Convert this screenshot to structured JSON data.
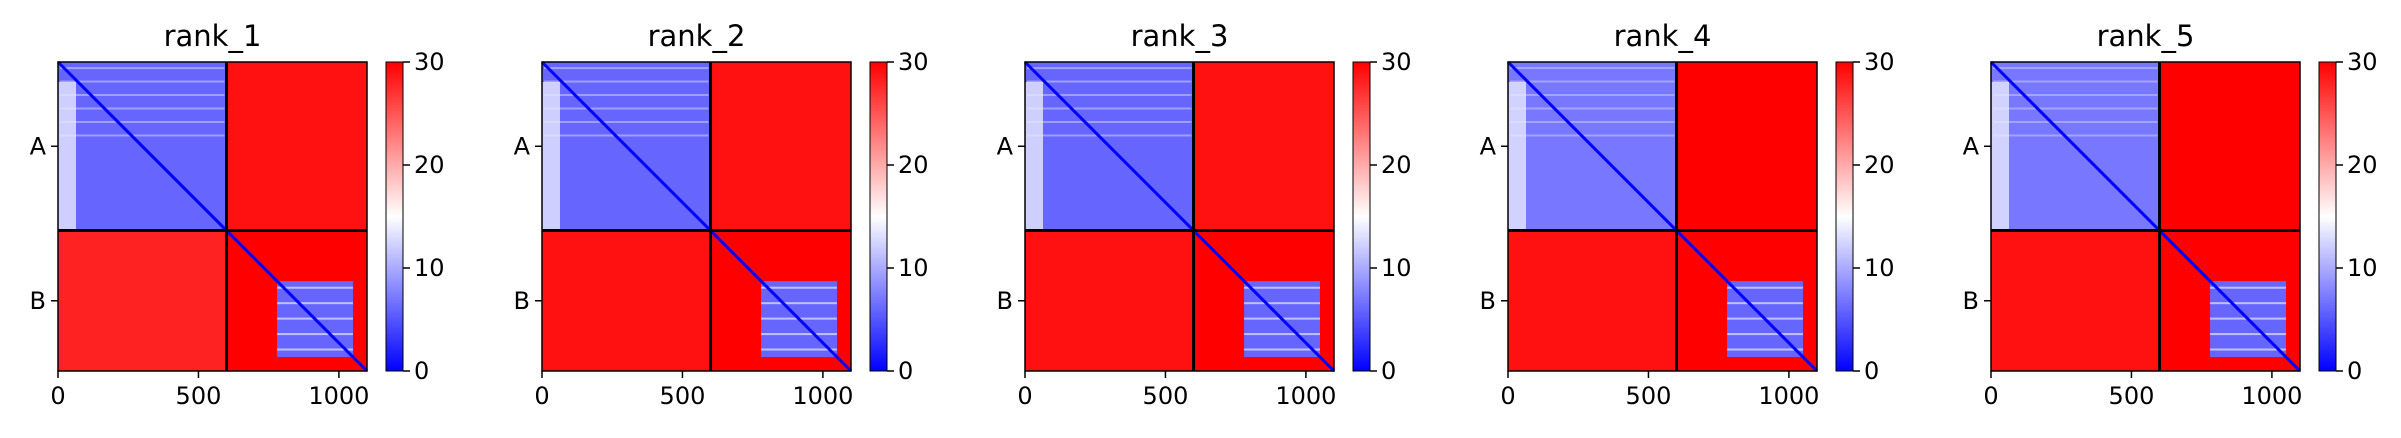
{
  "chart_data": [
    {
      "type": "heatmap",
      "title": "rank_1",
      "x_ticks": [
        "0",
        "500",
        "1000"
      ],
      "x_tick_values": [
        0,
        500,
        1000
      ],
      "xlim": [
        0,
        1100
      ],
      "y_labels": [
        "A",
        "B"
      ],
      "chain_boundary": 600,
      "colorbar": {
        "min": 0,
        "max": 30,
        "ticks": [
          "0",
          "10",
          "20",
          "30"
        ],
        "colors": [
          "#0000ff",
          "#ffffff",
          "#ff0000"
        ]
      },
      "blocks": [
        {
          "rows": "A",
          "cols": "A",
          "level": 6
        },
        {
          "rows": "A",
          "cols": "B",
          "level": 29
        },
        {
          "rows": "B",
          "cols": "A",
          "level": 28
        },
        {
          "rows": "B",
          "cols": "B",
          "level": 30,
          "inner_block": [
            780,
            1050
          ],
          "inner_level": 6
        }
      ]
    },
    {
      "type": "heatmap",
      "title": "rank_2",
      "x_ticks": [
        "0",
        "500",
        "1000"
      ],
      "x_tick_values": [
        0,
        500,
        1000
      ],
      "xlim": [
        0,
        1100
      ],
      "y_labels": [
        "A",
        "B"
      ],
      "chain_boundary": 600,
      "colorbar": {
        "min": 0,
        "max": 30,
        "ticks": [
          "0",
          "10",
          "20",
          "30"
        ],
        "colors": [
          "#0000ff",
          "#ffffff",
          "#ff0000"
        ]
      },
      "blocks": [
        {
          "rows": "A",
          "cols": "A",
          "level": 6
        },
        {
          "rows": "A",
          "cols": "B",
          "level": 29
        },
        {
          "rows": "B",
          "cols": "A",
          "level": 29
        },
        {
          "rows": "B",
          "cols": "B",
          "level": 30,
          "inner_block": [
            780,
            1050
          ],
          "inner_level": 6
        }
      ]
    },
    {
      "type": "heatmap",
      "title": "rank_3",
      "x_ticks": [
        "0",
        "500",
        "1000"
      ],
      "x_tick_values": [
        0,
        500,
        1000
      ],
      "xlim": [
        0,
        1100
      ],
      "y_labels": [
        "A",
        "B"
      ],
      "chain_boundary": 600,
      "colorbar": {
        "min": 0,
        "max": 30,
        "ticks": [
          "0",
          "10",
          "20",
          "30"
        ],
        "colors": [
          "#0000ff",
          "#ffffff",
          "#ff0000"
        ]
      },
      "blocks": [
        {
          "rows": "A",
          "cols": "A",
          "level": 6
        },
        {
          "rows": "A",
          "cols": "B",
          "level": 29
        },
        {
          "rows": "B",
          "cols": "A",
          "level": 29
        },
        {
          "rows": "B",
          "cols": "B",
          "level": 30,
          "inner_block": [
            780,
            1050
          ],
          "inner_level": 6
        }
      ]
    },
    {
      "type": "heatmap",
      "title": "rank_4",
      "x_ticks": [
        "0",
        "500",
        "1000"
      ],
      "x_tick_values": [
        0,
        500,
        1000
      ],
      "xlim": [
        0,
        1100
      ],
      "y_labels": [
        "A",
        "B"
      ],
      "chain_boundary": 600,
      "colorbar": {
        "min": 0,
        "max": 30,
        "ticks": [
          "0",
          "10",
          "20",
          "30"
        ],
        "colors": [
          "#0000ff",
          "#ffffff",
          "#ff0000"
        ]
      },
      "blocks": [
        {
          "rows": "A",
          "cols": "A",
          "level": 7
        },
        {
          "rows": "A",
          "cols": "B",
          "level": 30
        },
        {
          "rows": "B",
          "cols": "A",
          "level": 29
        },
        {
          "rows": "B",
          "cols": "B",
          "level": 30,
          "inner_block": [
            780,
            1050
          ],
          "inner_level": 6
        }
      ]
    },
    {
      "type": "heatmap",
      "title": "rank_5",
      "x_ticks": [
        "0",
        "500",
        "1000"
      ],
      "x_tick_values": [
        0,
        500,
        1000
      ],
      "xlim": [
        0,
        1100
      ],
      "y_labels": [
        "A",
        "B"
      ],
      "chain_boundary": 600,
      "colorbar": {
        "min": 0,
        "max": 30,
        "ticks": [
          "0",
          "10",
          "20",
          "30"
        ],
        "colors": [
          "#0000ff",
          "#ffffff",
          "#ff0000"
        ]
      },
      "blocks": [
        {
          "rows": "A",
          "cols": "A",
          "level": 7
        },
        {
          "rows": "A",
          "cols": "B",
          "level": 30
        },
        {
          "rows": "B",
          "cols": "A",
          "level": 29
        },
        {
          "rows": "B",
          "cols": "B",
          "level": 30,
          "inner_block": [
            780,
            1050
          ],
          "inner_level": 6
        }
      ]
    }
  ]
}
